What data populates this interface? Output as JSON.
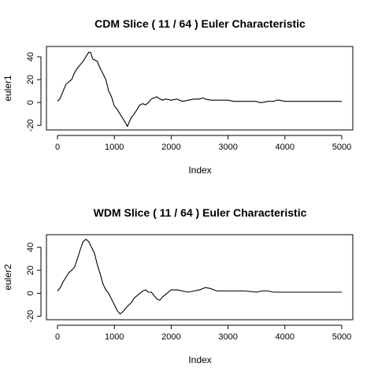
{
  "chart_data": [
    {
      "type": "line",
      "title": "CDM Slice ( 11 / 64 ) Euler Characteristic",
      "xlabel": "Index",
      "ylabel": "euler1",
      "xlim": [
        0,
        5000
      ],
      "ylim": [
        -24,
        49
      ],
      "xticks": [
        0,
        1000,
        2000,
        3000,
        4000,
        5000
      ],
      "yticks": [
        -20,
        0,
        20,
        40
      ],
      "grid": false,
      "series": [
        {
          "x": [
            0,
            40,
            100,
            150,
            200,
            250,
            300,
            350,
            400,
            450,
            500,
            550,
            580,
            620,
            660,
            700,
            750,
            800,
            850,
            900,
            950,
            1000,
            1050,
            1100,
            1150,
            1200,
            1230,
            1270,
            1300,
            1350,
            1400,
            1450,
            1500,
            1550,
            1600,
            1650,
            1700,
            1750,
            1800,
            1850,
            1900,
            2000,
            2100,
            2200,
            2300,
            2400,
            2500,
            2550,
            2600,
            2700,
            2800,
            3000,
            3100,
            3300,
            3500,
            3550,
            3600,
            3700,
            3800,
            3850,
            3900,
            4000,
            4200,
            5000
          ],
          "values": [
            1,
            3,
            10,
            16,
            18,
            20,
            26,
            30,
            33,
            36,
            40,
            44,
            44,
            38,
            37,
            36,
            30,
            25,
            20,
            10,
            5,
            -3,
            -6,
            -10,
            -14,
            -18,
            -21,
            -16,
            -13,
            -10,
            -6,
            -2,
            -1,
            -2,
            0,
            3,
            4,
            5,
            3,
            2,
            3,
            2,
            3,
            1,
            2,
            3,
            3,
            4,
            3,
            2,
            2,
            2,
            1,
            1,
            1,
            0,
            0,
            1,
            1,
            2,
            2,
            1,
            1,
            1
          ]
        }
      ]
    },
    {
      "type": "line",
      "title": "WDM Slice ( 11 / 64 ) Euler Characteristic",
      "xlabel": "Index",
      "ylabel": "euler2",
      "xlim": [
        0,
        5000
      ],
      "ylim": [
        -23,
        51
      ],
      "xticks": [
        0,
        1000,
        2000,
        3000,
        4000,
        5000
      ],
      "yticks": [
        -20,
        0,
        20,
        40
      ],
      "grid": false,
      "series": [
        {
          "x": [
            0,
            50,
            100,
            150,
            200,
            250,
            300,
            350,
            400,
            450,
            500,
            550,
            600,
            650,
            700,
            750,
            800,
            850,
            900,
            950,
            1000,
            1050,
            1100,
            1150,
            1200,
            1300,
            1350,
            1400,
            1450,
            1500,
            1550,
            1600,
            1650,
            1700,
            1750,
            1800,
            1850,
            1900,
            2000,
            2100,
            2200,
            2300,
            2400,
            2500,
            2600,
            2700,
            2800,
            3000,
            3200,
            3300,
            3500,
            3600,
            3700,
            3800,
            4000,
            5000
          ],
          "values": [
            2,
            5,
            10,
            14,
            18,
            20,
            23,
            30,
            38,
            45,
            47,
            45,
            40,
            35,
            25,
            17,
            8,
            3,
            0,
            -5,
            -10,
            -15,
            -18,
            -16,
            -13,
            -8,
            -4,
            -2,
            0,
            2,
            3,
            1,
            1,
            -2,
            -5,
            -6,
            -3,
            -1,
            3,
            3,
            2,
            1,
            2,
            3,
            5,
            4,
            2,
            2,
            2,
            2,
            1,
            2,
            2,
            1,
            1,
            1
          ]
        }
      ]
    }
  ]
}
